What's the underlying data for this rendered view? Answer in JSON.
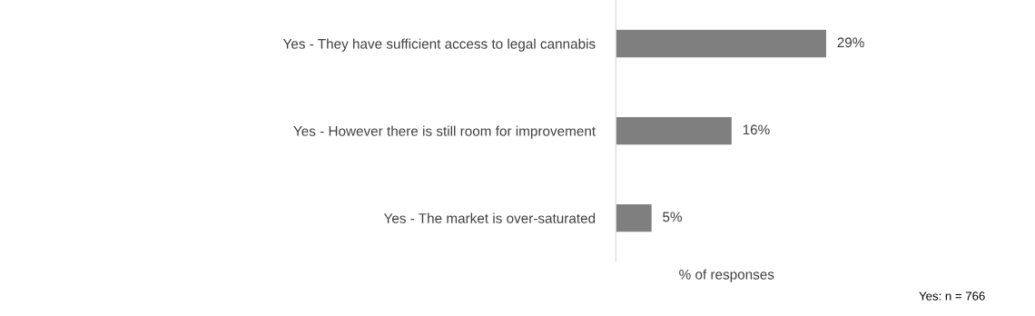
{
  "chart_data": {
    "type": "bar",
    "orientation": "horizontal",
    "categories": [
      "Yes - They have sufficient access to legal cannabis",
      "Yes - However there is still room for improvement",
      "Yes - The market is over-saturated"
    ],
    "values": [
      29,
      16,
      5
    ],
    "color": "#7f7f7f",
    "value_labels": [
      "29%",
      "16%",
      "5%"
    ],
    "tick_labels": "y",
    "xlabel": "% of responses",
    "annotations": [
      "Yes: n = 766"
    ],
    "grid": false,
    "legend": false
  }
}
